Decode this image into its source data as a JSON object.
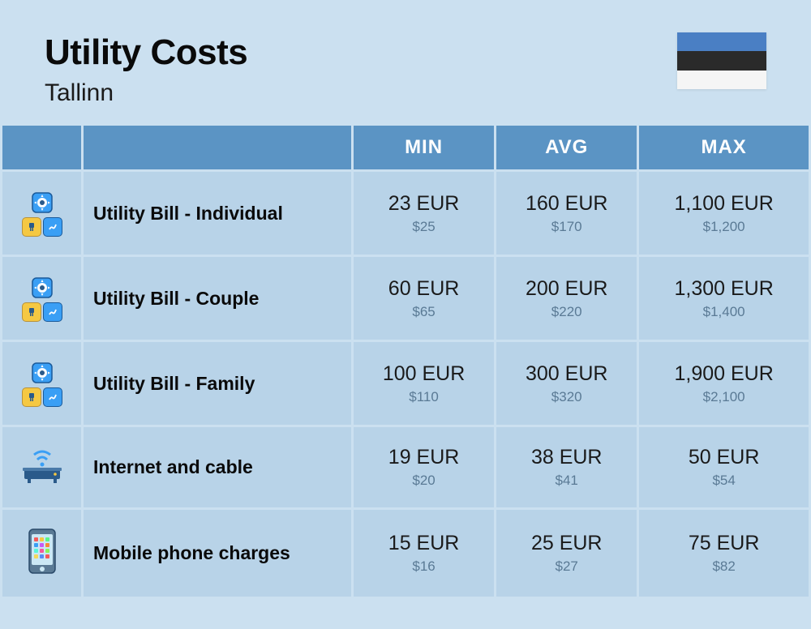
{
  "header": {
    "title": "Utility Costs",
    "subtitle": "Tallinn"
  },
  "flag": {
    "stripes": [
      "#4a7fc4",
      "#2a2a2a",
      "#f5f5f5"
    ]
  },
  "columns": {
    "min": "MIN",
    "avg": "AVG",
    "max": "MAX"
  },
  "rows": [
    {
      "icon": "utility",
      "label": "Utility Bill - Individual",
      "min_eur": "23 EUR",
      "min_usd": "$25",
      "avg_eur": "160 EUR",
      "avg_usd": "$170",
      "max_eur": "1,100 EUR",
      "max_usd": "$1,200"
    },
    {
      "icon": "utility",
      "label": "Utility Bill - Couple",
      "min_eur": "60 EUR",
      "min_usd": "$65",
      "avg_eur": "200 EUR",
      "avg_usd": "$220",
      "max_eur": "1,300 EUR",
      "max_usd": "$1,400"
    },
    {
      "icon": "utility",
      "label": "Utility Bill - Family",
      "min_eur": "100 EUR",
      "min_usd": "$110",
      "avg_eur": "300 EUR",
      "avg_usd": "$320",
      "max_eur": "1,900 EUR",
      "max_usd": "$2,100"
    },
    {
      "icon": "router",
      "label": "Internet and cable",
      "min_eur": "19 EUR",
      "min_usd": "$20",
      "avg_eur": "38 EUR",
      "avg_usd": "$41",
      "max_eur": "50 EUR",
      "max_usd": "$54"
    },
    {
      "icon": "phone",
      "label": "Mobile phone charges",
      "min_eur": "15 EUR",
      "min_usd": "$16",
      "avg_eur": "25 EUR",
      "avg_usd": "$27",
      "max_eur": "75 EUR",
      "max_usd": "$82"
    }
  ],
  "colors": {
    "bg": "#cbe0f0",
    "header_cell": "#5b94c4",
    "data_cell": "#b8d3e8",
    "icon_yellow": "#f5c842",
    "icon_blue": "#3a9ff5",
    "icon_dark": "#2a5a8a"
  }
}
